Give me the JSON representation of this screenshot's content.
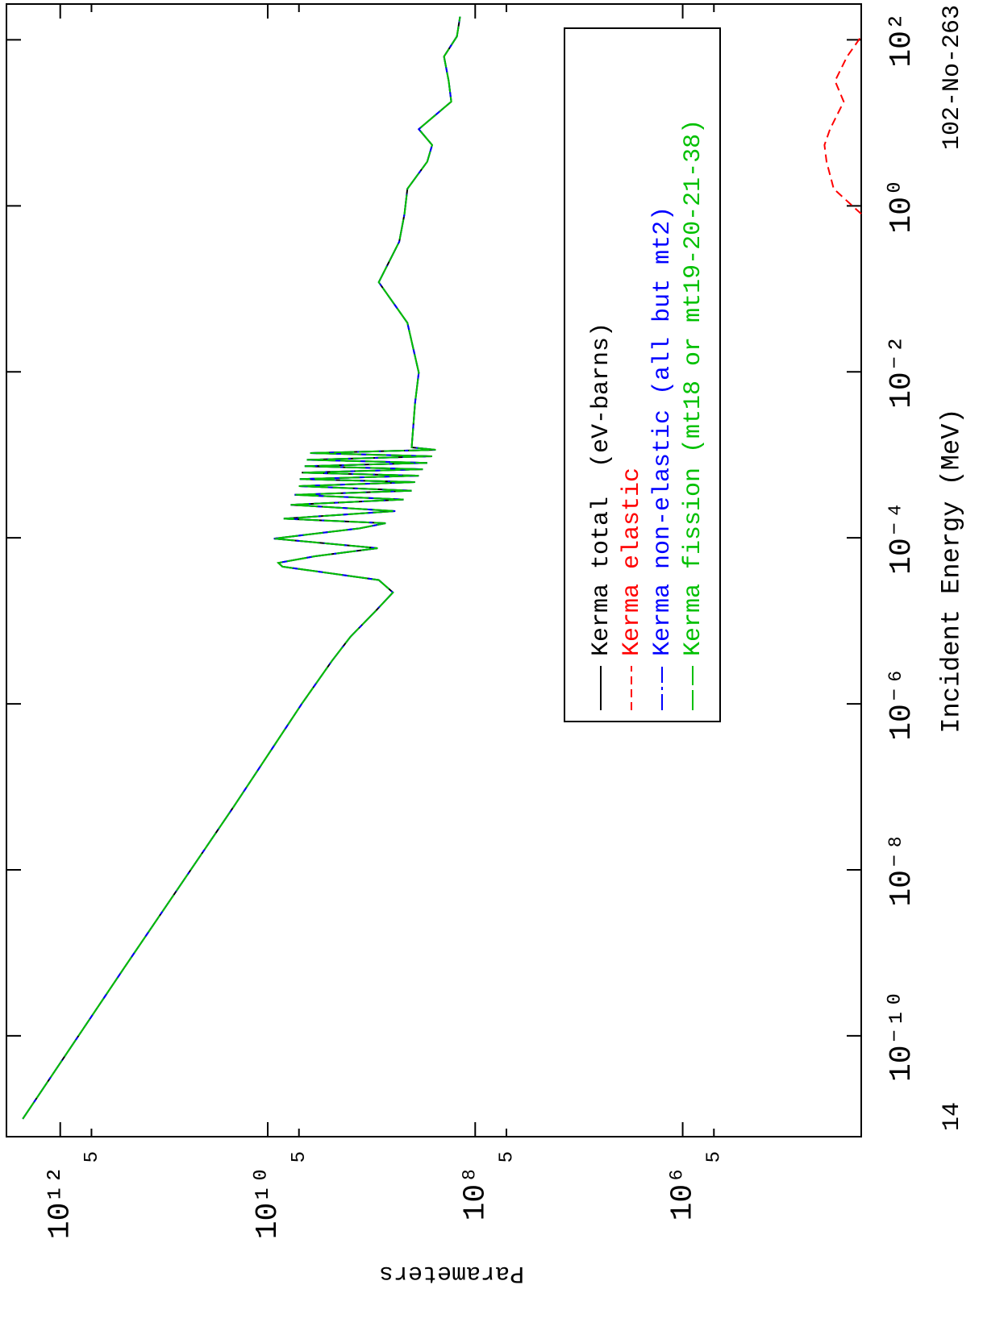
{
  "chart_data": {
    "type": "line",
    "title": "102-No-263",
    "annotation": "14",
    "x_label": "Incident Energy (MeV)",
    "y_label": "Parameters",
    "log_x": true,
    "log_y": true,
    "legend": "upper right",
    "xlim": [
      6.1e-12,
      270
    ],
    "ylim": [
      19000.0,
      3300000000000.0
    ],
    "xticks": [
      {
        "value": 1e-10,
        "label": "10⁻¹⁰"
      },
      {
        "value": 1e-08,
        "label": "10⁻⁸"
      },
      {
        "value": 1e-06,
        "label": "10⁻⁶"
      },
      {
        "value": 0.0001,
        "label": "10⁻⁴"
      },
      {
        "value": 0.01,
        "label": "10⁻²"
      },
      {
        "value": 1,
        "label": "10⁰"
      },
      {
        "value": 100,
        "label": "10²"
      }
    ],
    "yticks": [
      {
        "value": 1000000000000.0,
        "label": "10¹²"
      },
      {
        "value": 500000000000.0,
        "label": "5"
      },
      {
        "value": 10000000000.0,
        "label": "10¹⁰"
      },
      {
        "value": 5000000000.0,
        "label": "5"
      },
      {
        "value": 100000000.0,
        "label": "10⁸"
      },
      {
        "value": 50000000.0,
        "label": "5"
      },
      {
        "value": 1000000.0,
        "label": "10⁶"
      },
      {
        "value": 500000.0,
        "label": "5"
      }
    ],
    "x": [
      1e-11,
      6.7e-10,
      5.9e-08,
      1e-06,
      3.3e-06,
      6.4e-06,
      1.3e-05,
      2.2e-05,
      3.1e-05,
      4.5e-05,
      5e-05,
      6e-05,
      7.5e-05,
      9.8e-05,
      0.00013,
      0.00015,
      0.00017,
      0.00021,
      0.00025,
      0.00029,
      0.00033,
      0.00037,
      0.00042,
      0.00047,
      0.00051,
      0.00056,
      0.00061,
      0.00067,
      0.00073,
      0.0008,
      0.00087,
      0.00096,
      0.00105,
      0.00115,
      0.00123,
      0.0042,
      0.0098,
      0.039,
      0.12,
      0.37,
      0.8,
      1.6,
      3.4,
      5.4,
      8.4,
      18,
      32,
      63,
      110,
      190
    ],
    "series": [
      {
        "name": "Kerma total  (eV-barns)",
        "color": "#000000",
        "dash": "none",
        "values": [
          2300000000000.0,
          240000000000.0,
          21000000000.0,
          4700000000.0,
          2400000000.0,
          1600000000.0,
          920000000.0,
          620000000.0,
          850000000.0,
          7200000000.0,
          7900000000.0,
          3500000000.0,
          870000000.0,
          8700000000.0,
          1300000000.0,
          730000000.0,
          7000000000.0,
          590000000.0,
          6000000000.0,
          490000000.0,
          5500000000.0,
          410000000.0,
          5000000000.0,
          380000000.0,
          4900000000.0,
          350000000.0,
          4700000000.0,
          320000000.0,
          4400000000.0,
          290000000.0,
          4200000000.0,
          260000000.0,
          3900000000.0,
          240000000.0,
          410000000.0,
          380000000.0,
          350000000.0,
          450000000.0,
          850000000.0,
          540000000.0,
          480000000.0,
          450000000.0,
          290000000.0,
          260000000.0,
          350000000.0,
          170000000.0,
          180000000.0,
          200000000.0,
          150000000.0,
          140000000.0
        ]
      },
      {
        "name": "Kerma elastic",
        "color": "#ff0000",
        "dash": "10,6",
        "values": [
          null,
          null,
          null,
          null,
          null,
          null,
          null,
          null,
          null,
          null,
          null,
          null,
          null,
          null,
          null,
          null,
          null,
          null,
          null,
          null,
          null,
          null,
          null,
          null,
          null,
          null,
          null,
          null,
          null,
          null,
          null,
          null,
          null,
          null,
          null,
          null,
          null,
          null,
          null,
          null,
          19000.0,
          35000.0,
          41000.0,
          43000.0,
          38000.0,
          28000.0,
          34000.0,
          26000.0,
          19000.0,
          null
        ]
      },
      {
        "name": "Kerma non-elastic (all but mt2)",
        "color": "#0000ff",
        "dash": "20,5,4,5",
        "values": [
          2300000000000.0,
          240000000000.0,
          21000000000.0,
          4700000000.0,
          2400000000.0,
          1600000000.0,
          920000000.0,
          620000000.0,
          850000000.0,
          7200000000.0,
          7900000000.0,
          3500000000.0,
          870000000.0,
          8700000000.0,
          1300000000.0,
          730000000.0,
          7000000000.0,
          590000000.0,
          6000000000.0,
          490000000.0,
          5500000000.0,
          410000000.0,
          5000000000.0,
          380000000.0,
          4900000000.0,
          350000000.0,
          4700000000.0,
          320000000.0,
          4400000000.0,
          290000000.0,
          4200000000.0,
          260000000.0,
          3900000000.0,
          240000000.0,
          410000000.0,
          380000000.0,
          350000000.0,
          450000000.0,
          850000000.0,
          540000000.0,
          480000000.0,
          450000000.0,
          290000000.0,
          260000000.0,
          350000000.0,
          170000000.0,
          180000000.0,
          200000000.0,
          150000000.0,
          140000000.0
        ]
      },
      {
        "name": "Kerma fission (mt18 or mt19-20-21-38)",
        "color": "#00c000",
        "dash": "25,6",
        "values": [
          2300000000000.0,
          240000000000.0,
          21000000000.0,
          4700000000.0,
          2400000000.0,
          1600000000.0,
          920000000.0,
          620000000.0,
          850000000.0,
          7200000000.0,
          7900000000.0,
          3500000000.0,
          870000000.0,
          8700000000.0,
          1300000000.0,
          730000000.0,
          7000000000.0,
          590000000.0,
          6000000000.0,
          490000000.0,
          5500000000.0,
          410000000.0,
          5000000000.0,
          380000000.0,
          4900000000.0,
          350000000.0,
          4700000000.0,
          320000000.0,
          4400000000.0,
          290000000.0,
          4200000000.0,
          260000000.0,
          3900000000.0,
          240000000.0,
          410000000.0,
          380000000.0,
          350000000.0,
          450000000.0,
          850000000.0,
          540000000.0,
          480000000.0,
          450000000.0,
          290000000.0,
          260000000.0,
          350000000.0,
          170000000.0,
          180000000.0,
          200000000.0,
          150000000.0,
          140000000.0
        ]
      }
    ]
  }
}
